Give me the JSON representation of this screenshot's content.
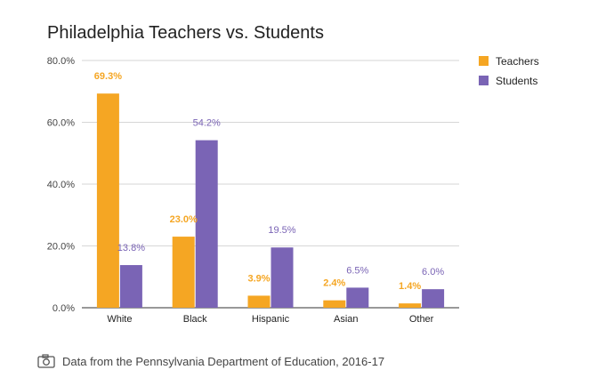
{
  "chart_data": {
    "type": "bar",
    "title": "Philadelphia Teachers vs. Students",
    "categories": [
      "White",
      "Black",
      "Hispanic",
      "Asian",
      "Other"
    ],
    "series": [
      {
        "name": "Teachers",
        "color": "#F5A623",
        "values": [
          69.3,
          23.0,
          3.9,
          2.4,
          1.4
        ],
        "labels": [
          "69.3%",
          "23.0%",
          "3.9%",
          "2.4%",
          "1.4%"
        ]
      },
      {
        "name": "Students",
        "color": "#7A64B5",
        "values": [
          13.8,
          54.2,
          19.5,
          6.5,
          6.0
        ],
        "labels": [
          "13.8%",
          "54.2%",
          "19.5%",
          "6.5%",
          "6.0%"
        ]
      }
    ],
    "yticks": [
      "0.0%",
      "20.0%",
      "40.0%",
      "60.0%",
      "80.0%"
    ],
    "ylim": [
      0,
      80
    ],
    "grid": true,
    "legend_position": "right"
  },
  "source": {
    "icon": "camera-icon",
    "text": "Data from the Pennsylvania Department of Education, 2016-17"
  }
}
